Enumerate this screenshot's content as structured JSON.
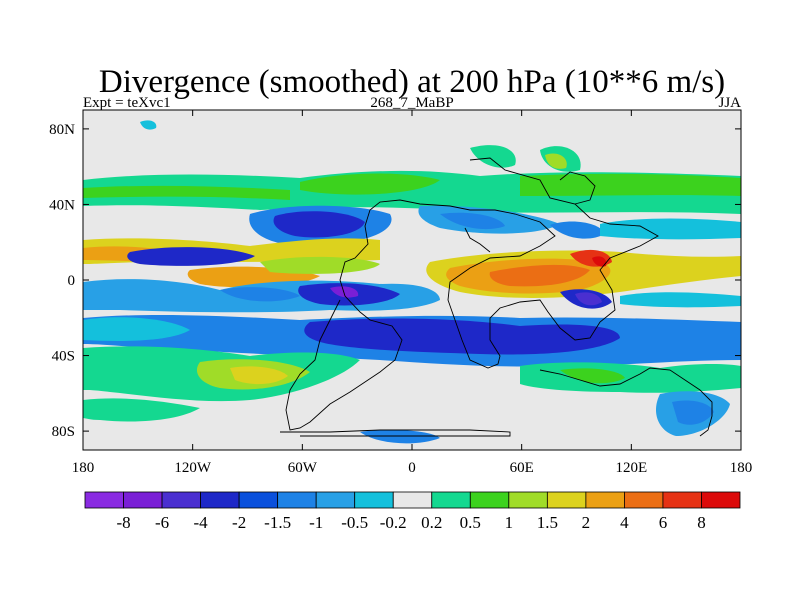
{
  "chart_data": {
    "type": "heatmap",
    "title": "Divergence (smoothed) at 200 hPa (10**6 m/s)",
    "subtitle_left": "Expt = teXvc1",
    "subtitle_center": "268_7_MaBP",
    "subtitle_right": "JJA",
    "x_axis": {
      "range": [
        -180,
        180
      ],
      "ticks": [
        {
          "value": -180,
          "label": "180"
        },
        {
          "value": -120,
          "label": "120W"
        },
        {
          "value": -60,
          "label": "60W"
        },
        {
          "value": 0,
          "label": "0"
        },
        {
          "value": 60,
          "label": "60E"
        },
        {
          "value": 120,
          "label": "120E"
        },
        {
          "value": 180,
          "label": "180"
        }
      ]
    },
    "y_axis": {
      "range": [
        -90,
        90
      ],
      "ticks": [
        {
          "value": 80,
          "label": "80N"
        },
        {
          "value": 40,
          "label": "40N"
        },
        {
          "value": 0,
          "label": "0"
        },
        {
          "value": -40,
          "label": "40S"
        },
        {
          "value": -80,
          "label": "80S"
        }
      ]
    },
    "colorbar": {
      "levels": [
        "-8",
        "-6",
        "-4",
        "-2",
        "-1.5",
        "-1",
        "-0.5",
        "-0.2",
        "0.2",
        "0.5",
        "1",
        "1.5",
        "2",
        "4",
        "6",
        "8"
      ],
      "colors": [
        "#8a2be2",
        "#7a1fd6",
        "#4a2fd0",
        "#1e28c8",
        "#0a50dc",
        "#1e82e6",
        "#28a0e6",
        "#14c0dc",
        "#e8e8e8",
        "#14d890",
        "#3cd21e",
        "#a0dc28",
        "#dcd21e",
        "#eba014",
        "#eb6e14",
        "#e63214",
        "#dc0a0a"
      ]
    }
  }
}
